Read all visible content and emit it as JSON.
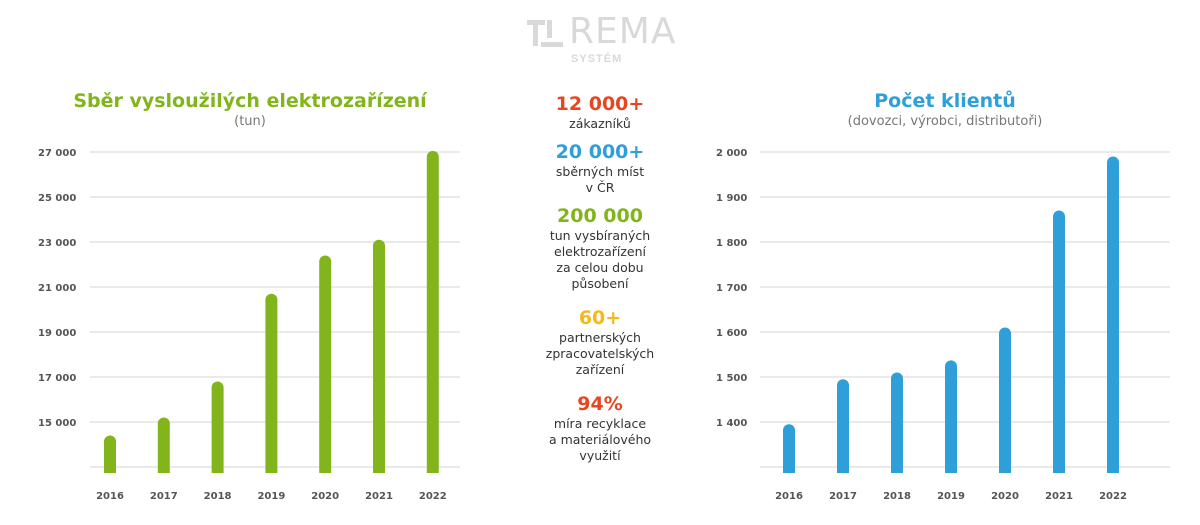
{
  "logo": {
    "name": "REMA",
    "sub": "SYSTÉM"
  },
  "colors": {
    "green": "#82b51c",
    "blue": "#2e9fd8",
    "red": "#e8461e",
    "yellow": "#f5b918",
    "grid": "#d5d5d5"
  },
  "stats": [
    {
      "value": "12 000+",
      "label": [
        "zákazníků"
      ],
      "color": "#e8461e"
    },
    {
      "value": "20 000+",
      "label": [
        "sběrných míst",
        "v ČR"
      ],
      "color": "#2e9fd8"
    },
    {
      "value": "200 000",
      "label": [
        "tun vysbíraných",
        "elektrozařízení",
        "za celou dobu",
        "působení"
      ],
      "color": "#82b51c"
    },
    {
      "value": "60+",
      "label": [
        "partnerských",
        "zpracovatelských",
        "zařízení"
      ],
      "color": "#f5b918"
    },
    {
      "value": "94%",
      "label": [
        "míra recyklace",
        "a materiálového",
        "využití"
      ],
      "color": "#e8461e"
    }
  ],
  "chart_data": [
    {
      "type": "bar",
      "title": "Sběr vysloužilých elektrozařízení",
      "subtitle": "(tun)",
      "xlabel": "",
      "ylabel": "",
      "categories": [
        "2016",
        "2017",
        "2018",
        "2019",
        "2020",
        "2021",
        "2022"
      ],
      "values": [
        14400,
        15200,
        16800,
        20700,
        22400,
        23100,
        27050
      ],
      "ylim": [
        13000,
        27000
      ],
      "yticks": [
        15000,
        17000,
        19000,
        21000,
        23000,
        25000,
        27000
      ],
      "ytick_labels": [
        "15 000",
        "17 000",
        "19 000",
        "21 000",
        "23 000",
        "25 000",
        "27 000"
      ],
      "grid": true,
      "color": "#82b51c"
    },
    {
      "type": "bar",
      "title": "Počet klientů",
      "subtitle": "(dovozci, výrobci, distributoři)",
      "xlabel": "",
      "ylabel": "",
      "categories": [
        "2016",
        "2017",
        "2018",
        "2019",
        "2020",
        "2021",
        "2022"
      ],
      "values": [
        1395,
        1495,
        1510,
        1537,
        1610,
        1870,
        1990
      ],
      "ylim": [
        1300,
        2000
      ],
      "yticks": [
        1400,
        1500,
        1600,
        1700,
        1800,
        1900,
        2000
      ],
      "ytick_labels": [
        "1 400",
        "1 500",
        "1 600",
        "1 700",
        "1 800",
        "1 900",
        "2 000"
      ],
      "grid": true,
      "color": "#2e9fd8"
    }
  ]
}
